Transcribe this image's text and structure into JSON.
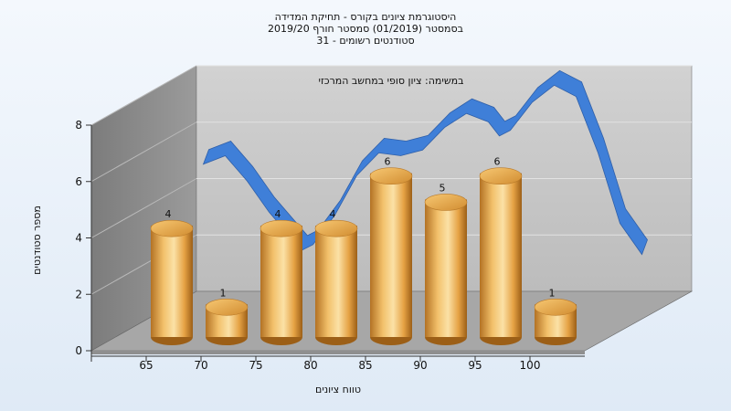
{
  "chart_data": {
    "type": "bar",
    "title_lines": [
      "היסטוגרמת ציונים בקורס - תחיקת המדידה",
      "בסמסטר  (01/2019)  סמסטר חורף 2019/20",
      "סטודנטים רשומים - 31"
    ],
    "annotation": "במשימה: ציון סופי במחשב המרכזי",
    "xlabel": "טווח ציונים",
    "ylabel": "מספר סטודנטים",
    "categories": [
      "65",
      "70",
      "75",
      "80",
      "85",
      "90",
      "95",
      "100"
    ],
    "values": [
      4,
      1,
      4,
      4,
      6,
      5,
      6,
      1
    ],
    "ylim": [
      0,
      8
    ],
    "yticks": [
      0,
      2,
      4,
      6,
      8
    ],
    "grid": true,
    "legend": "none",
    "series": [
      {
        "values": [
          4,
          1,
          4,
          4,
          6,
          5,
          6,
          1
        ]
      }
    ],
    "trend_ribbon": {
      "x": [
        64,
        66,
        68,
        70,
        72,
        73,
        74,
        76,
        78,
        80,
        82,
        84,
        86,
        88,
        90,
        91,
        92,
        94,
        96,
        98,
        100,
        102,
        104
      ],
      "y": [
        5.4,
        5.7,
        4.8,
        3.7,
        2.8,
        2.35,
        2.55,
        3.6,
        5.0,
        5.8,
        5.7,
        5.9,
        6.7,
        7.2,
        6.9,
        6.4,
        6.6,
        7.6,
        8.2,
        7.8,
        5.8,
        3.3,
        2.2
      ]
    },
    "colors": {
      "bar_light": "#fde6b0",
      "bar_mid": "#e6a243",
      "bar_dark": "#a6661a",
      "ribbon": "#3f7fd8",
      "ribbon_edge": "#2f5fa8",
      "back_wall": "#c9c9c9",
      "side_wall": "#8a8a8a",
      "floor": "#a9a9a9"
    }
  }
}
